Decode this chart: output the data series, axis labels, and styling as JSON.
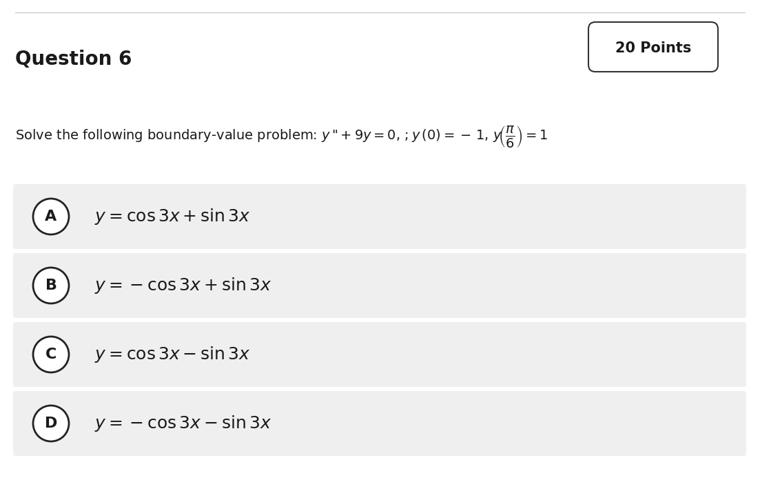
{
  "title": "Question 6",
  "points_label": "20 Points",
  "options": [
    {
      "label": "A",
      "text": "$y = \\cos 3x + \\sin 3x$"
    },
    {
      "label": "B",
      "text": "$y = -\\cos 3x + \\sin 3x$"
    },
    {
      "label": "C",
      "text": "$y = \\cos 3x - \\sin 3x$"
    },
    {
      "label": "D",
      "text": "$y = -\\cos 3x - \\sin 3x$"
    }
  ],
  "bg_color": "#ffffff",
  "option_bg_color": "#efefef",
  "title_fontsize": 20,
  "points_fontsize": 15,
  "problem_fontsize": 14,
  "option_fontsize": 18,
  "label_fontsize": 16
}
